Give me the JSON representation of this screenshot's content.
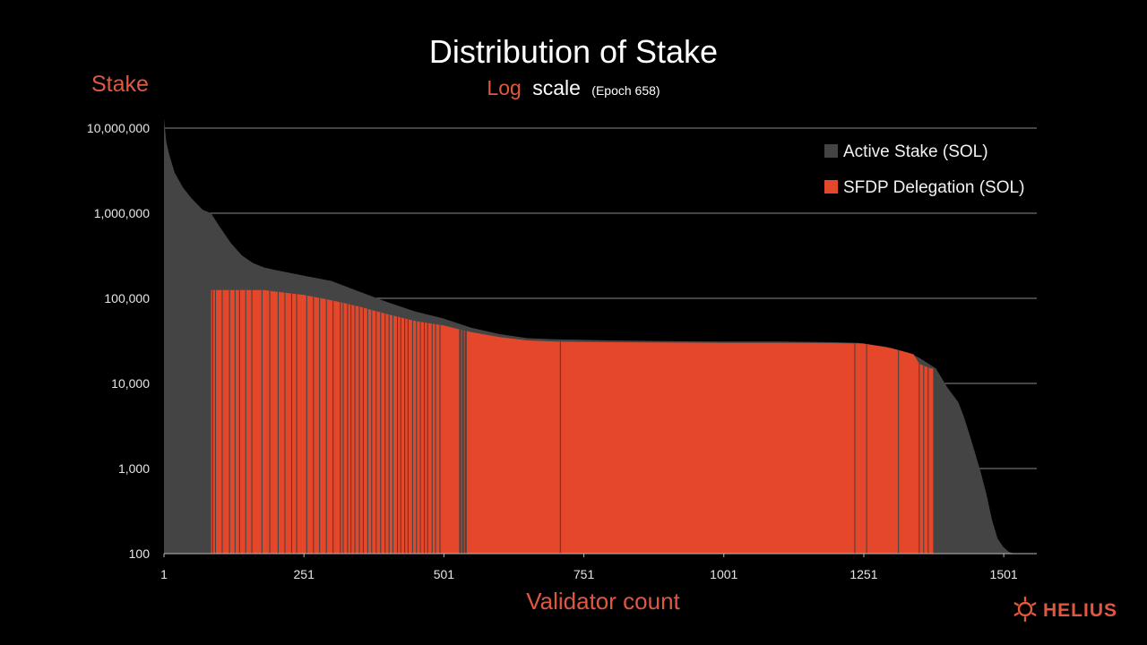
{
  "colors": {
    "background": "#000000",
    "active_stake": "#444444",
    "sfdp": "#E5472B",
    "accent_text": "#E0583F",
    "gridline": "#8a8a8a"
  },
  "header": {
    "title": "Distribution of Stake",
    "subtitle_accent": "Log",
    "subtitle_rest": "scale",
    "subtitle_epoch": "(Epoch 658)"
  },
  "brand": {
    "name": "HELIUS",
    "icon": "helius-logo-icon"
  },
  "chart_data": {
    "type": "area",
    "ylabel": "Stake",
    "xlabel": "Validator count",
    "yscale": "log",
    "ylim": [
      100,
      10000000
    ],
    "xlim": [
      1,
      1560
    ],
    "y_ticks": [
      100,
      1000,
      10000,
      100000,
      1000000,
      10000000
    ],
    "y_tick_labels": [
      "100",
      "1,000",
      "10,000",
      "100,000",
      "1,000,000",
      "10,000,000"
    ],
    "x_ticks": [
      1,
      251,
      501,
      751,
      1001,
      1251,
      1501
    ],
    "x_tick_labels": [
      "1",
      "251",
      "501",
      "751",
      "1001",
      "1251",
      "1501"
    ],
    "grid": "horizontal",
    "legend_position": "top-right",
    "series": [
      {
        "name": "Active Stake (SOL)",
        "color": "#444444",
        "points": [
          [
            1,
            13000000
          ],
          [
            5,
            7000000
          ],
          [
            10,
            5000000
          ],
          [
            20,
            3000000
          ],
          [
            35,
            2000000
          ],
          [
            50,
            1500000
          ],
          [
            70,
            1100000
          ],
          [
            85,
            1000000
          ],
          [
            100,
            700000
          ],
          [
            120,
            450000
          ],
          [
            140,
            320000
          ],
          [
            160,
            260000
          ],
          [
            180,
            230000
          ],
          [
            200,
            215000
          ],
          [
            250,
            185000
          ],
          [
            300,
            160000
          ],
          [
            350,
            120000
          ],
          [
            400,
            90000
          ],
          [
            450,
            70000
          ],
          [
            500,
            58000
          ],
          [
            550,
            45000
          ],
          [
            600,
            38000
          ],
          [
            650,
            34000
          ],
          [
            700,
            33000
          ],
          [
            750,
            32500
          ],
          [
            800,
            32000
          ],
          [
            900,
            31500
          ],
          [
            1000,
            31000
          ],
          [
            1100,
            31000
          ],
          [
            1200,
            30500
          ],
          [
            1240,
            30000
          ],
          [
            1290,
            27000
          ],
          [
            1330,
            23000
          ],
          [
            1350,
            20000
          ],
          [
            1380,
            15000
          ],
          [
            1400,
            9000
          ],
          [
            1420,
            6000
          ],
          [
            1430,
            4000
          ],
          [
            1440,
            2500
          ],
          [
            1450,
            1500
          ],
          [
            1460,
            900
          ],
          [
            1470,
            500
          ],
          [
            1480,
            250
          ],
          [
            1490,
            150
          ],
          [
            1500,
            120
          ],
          [
            1510,
            105
          ],
          [
            1520,
            100
          ]
        ]
      },
      {
        "name": "SFDP Delegation (SOL)",
        "color": "#E5472B",
        "points": [
          [
            85,
            125000
          ],
          [
            150,
            125000
          ],
          [
            180,
            125000
          ],
          [
            200,
            120000
          ],
          [
            250,
            110000
          ],
          [
            300,
            95000
          ],
          [
            350,
            80000
          ],
          [
            400,
            65000
          ],
          [
            450,
            54000
          ],
          [
            500,
            48000
          ],
          [
            550,
            40000
          ],
          [
            600,
            35000
          ],
          [
            650,
            32000
          ],
          [
            700,
            31000
          ],
          [
            800,
            30500
          ],
          [
            1000,
            30000
          ],
          [
            1150,
            30000
          ],
          [
            1250,
            29500
          ],
          [
            1300,
            26000
          ],
          [
            1340,
            22000
          ],
          [
            1350,
            17000
          ],
          [
            1370,
            15000
          ],
          [
            1375,
            15000
          ]
        ],
        "gaps": [
          88,
          93,
          105,
          118,
          128,
          136,
          147,
          158,
          176,
          190,
          205,
          217,
          229,
          238,
          256,
          268,
          279,
          291,
          303,
          316,
          321,
          329,
          335,
          342,
          350,
          357,
          365,
          372,
          380,
          388,
          396,
          403,
          410,
          418,
          424,
          431,
          437,
          445,
          452,
          459,
          466,
          472,
          480,
          486,
          494,
          530,
          535,
          540,
          709,
          1235,
          1256,
          1313,
          1350,
          1358,
          1366
        ]
      }
    ]
  }
}
